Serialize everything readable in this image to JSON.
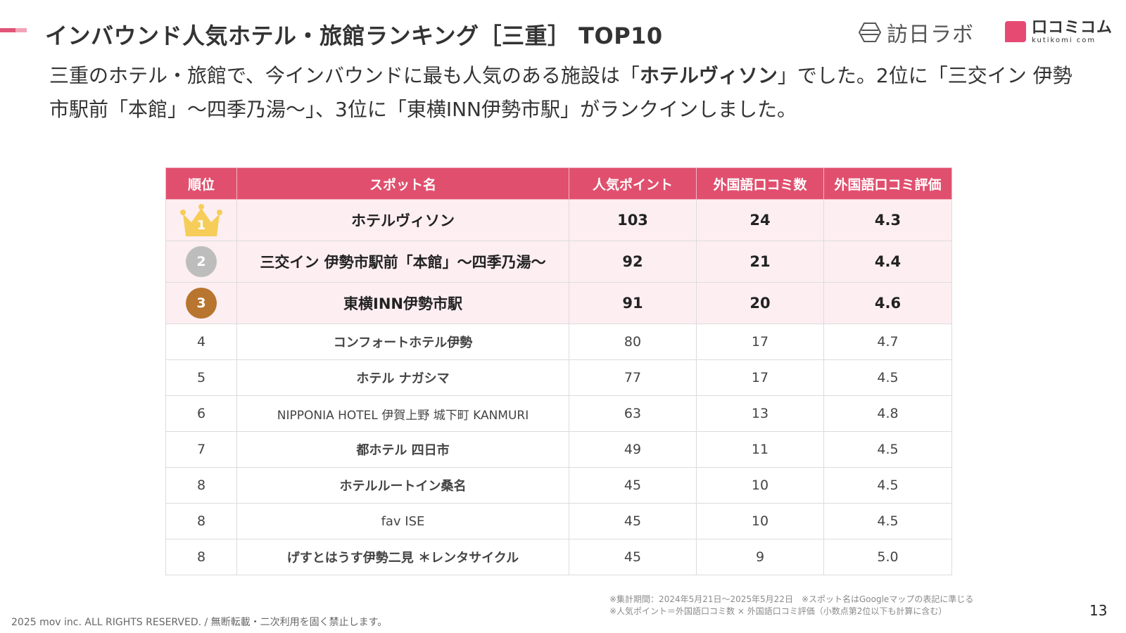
{
  "header": {
    "title": "インバウンド人気ホテル・旅館ランキング［三重］ TOP10",
    "brand_labo": "訪日ラボ",
    "brand_kutikomi": "口コミコム",
    "brand_kutikomi_sub": "kutikomi com"
  },
  "lead": {
    "part1": "三重のホテル・旅館で、今インバウンドに最も人気のある施設は「",
    "highlight": "ホテルヴィソン",
    "part2": "」でした。2位に「三交イン 伊勢市駅前「本館」〜四季乃湯〜」、3位に「東横INN伊勢市駅」がランクインしました。"
  },
  "table": {
    "headers": [
      "順位",
      "スポット名",
      "人気ポイント",
      "外国語口コミ数",
      "外国語口コミ評価"
    ],
    "rows": [
      {
        "rank": "1",
        "name": "ホテルヴィソン",
        "points": "103",
        "reviews": "24",
        "rating": "4.3"
      },
      {
        "rank": "2",
        "name": "三交イン 伊勢市駅前「本館」〜四季乃湯〜",
        "points": "92",
        "reviews": "21",
        "rating": "4.4"
      },
      {
        "rank": "3",
        "name": "東横INN伊勢市駅",
        "points": "91",
        "reviews": "20",
        "rating": "4.6"
      },
      {
        "rank": "4",
        "name": "コンフォートホテル伊勢",
        "points": "80",
        "reviews": "17",
        "rating": "4.7"
      },
      {
        "rank": "5",
        "name": "ホテル ナガシマ",
        "points": "77",
        "reviews": "17",
        "rating": "4.5"
      },
      {
        "rank": "6",
        "name": "NIPPONIA HOTEL 伊賀上野 城下町 KANMURI",
        "points": "63",
        "reviews": "13",
        "rating": "4.8"
      },
      {
        "rank": "7",
        "name": "都ホテル 四日市",
        "points": "49",
        "reviews": "11",
        "rating": "4.5"
      },
      {
        "rank": "8",
        "name": "ホテルルートイン桑名",
        "points": "45",
        "reviews": "10",
        "rating": "4.5"
      },
      {
        "rank": "8",
        "name": "fav ISE",
        "points": "45",
        "reviews": "10",
        "rating": "4.5"
      },
      {
        "rank": "8",
        "name": "げすとはうす伊勢二見 ＊レンタサイクル",
        "points": "45",
        "reviews": "9",
        "rating": "5.0"
      }
    ]
  },
  "notes": {
    "line1": "※集計期間：2024年5月21日〜2025年5月22日　※スポット名はGoogleマップの表記に準じる",
    "line2": "※人気ポイント＝外国語口コミ数 × 外国語口コミ評価（小数点第2位以下も計算に含む）"
  },
  "footer": {
    "copyright": "2025 mov inc. ALL RIGHTS RESERVED. / 無断転載・二次利用を固く禁止します。",
    "page_number": "13"
  },
  "colors": {
    "accent": "#e0506e",
    "row_highlight": "#fdeef2",
    "gold": "#f5cd58",
    "silver": "#bdbdbd",
    "bronze": "#b8752f"
  },
  "icons": {
    "rank1": "crown-icon",
    "rank2": "silver-medal-icon",
    "rank3": "bronze-medal-icon",
    "brand1": "hexagon-logo-icon",
    "brand2": "speech-box-logo-icon"
  }
}
